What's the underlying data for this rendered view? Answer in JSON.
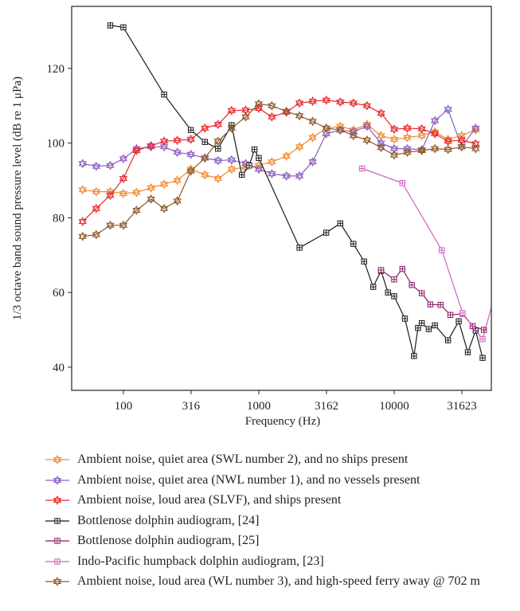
{
  "chart_data": {
    "type": "line",
    "xlabel": "Frequency (Hz)",
    "ylabel": "1/3 octave band sound pressure level (dB re 1 μPa)",
    "xscale": "log",
    "xlim": [
      41.5,
      52200
    ],
    "ylim": [
      33.8,
      136.6
    ],
    "xticks": [
      100,
      316,
      1000,
      3162,
      10000,
      31623
    ],
    "yticks": [
      40,
      60,
      80,
      100,
      120
    ],
    "series": [
      {
        "name": "Ambient noise, quiet area (SWL number 2), and no ships present",
        "color": "#f08c30",
        "marker": "star",
        "x": [
          50,
          63,
          80,
          100,
          125,
          160,
          200,
          250,
          315,
          400,
          500,
          630,
          800,
          1000,
          1250,
          1600,
          2000,
          2500,
          3150,
          4000,
          5000,
          6300,
          8000,
          10000,
          12500,
          16000,
          20000,
          25000,
          31500,
          40000
        ],
        "values": [
          87.5,
          87,
          87,
          86.5,
          86.8,
          88,
          89,
          90,
          93,
          91.5,
          90.5,
          93,
          93.5,
          94,
          95,
          96.5,
          99,
          101.5,
          104,
          104.5,
          103.5,
          105,
          102,
          101,
          101.5,
          102,
          103,
          101,
          102,
          103.5
        ]
      },
      {
        "name": "Ambient noise, quiet area (NWL number 1), and no vessels present",
        "color": "#8c5cc0",
        "marker": "star",
        "x": [
          50,
          63,
          80,
          100,
          125,
          160,
          200,
          250,
          315,
          400,
          500,
          630,
          800,
          1000,
          1250,
          1600,
          2000,
          2500,
          3150,
          4000,
          5000,
          6300,
          8000,
          10000,
          12500,
          16000,
          20000,
          25000,
          31500,
          40000
        ],
        "values": [
          94.5,
          93.8,
          94,
          95.8,
          98.5,
          99,
          99,
          97.5,
          97,
          96,
          95.3,
          95.5,
          94.5,
          93,
          91.8,
          91.2,
          91.2,
          95,
          102.5,
          103.5,
          103,
          104.5,
          100,
          98.5,
          98.5,
          98.2,
          106,
          109,
          99,
          104
        ]
      },
      {
        "name": "Ambient noise, loud area (SLVF), and ships present",
        "color": "#e8282c",
        "marker": "star",
        "x": [
          50,
          63,
          80,
          100,
          125,
          160,
          200,
          250,
          315,
          400,
          500,
          630,
          800,
          1000,
          1250,
          1600,
          2000,
          2500,
          3150,
          4000,
          5000,
          6300,
          8000,
          10000,
          12500,
          16000,
          20000,
          25000,
          31500,
          40000
        ],
        "values": [
          79,
          82.5,
          86,
          90.5,
          98,
          99.3,
          100.5,
          100.7,
          101,
          104,
          105,
          108.7,
          108.8,
          109.3,
          107,
          108.3,
          110.7,
          111.2,
          111.5,
          111,
          110.7,
          110,
          108,
          103.7,
          104,
          103.8,
          102.5,
          100.5,
          100.8,
          99.8
        ]
      },
      {
        "name": "Bottlenose dolphin audiogram, [24]",
        "color": "#1a1a1a",
        "marker": "square",
        "x": [
          80,
          100,
          200,
          315,
          400,
          500,
          630,
          750,
          850,
          930,
          1000,
          2000,
          3150,
          4000,
          5000,
          6000,
          7000,
          8000,
          9000,
          10000,
          12000,
          14000,
          15000,
          16000,
          18000,
          20000,
          25000,
          30000,
          35000,
          40000,
          45000
        ],
        "values": [
          131.5,
          131,
          113,
          103.5,
          100.3,
          98.5,
          104.8,
          91.5,
          94,
          98.3,
          96,
          72,
          76,
          78.5,
          73,
          68.3,
          61.5,
          65.8,
          60,
          59,
          53,
          43,
          50.5,
          51.8,
          50.2,
          51.2,
          47.2,
          52.3,
          44,
          49.8,
          42.5
        ]
      },
      {
        "name": "Bottlenose dolphin audiogram, [25]",
        "color": "#8a1a6a",
        "marker": "square",
        "x": [
          8000,
          10000,
          11500,
          13500,
          16000,
          18500,
          22000,
          26000,
          32000,
          38000,
          46000
        ],
        "values": [
          66,
          63.5,
          66.3,
          62,
          59.8,
          56.8,
          56.7,
          54,
          54.3,
          51,
          50
        ]
      },
      {
        "name": "Indo-Pacific humpback dolphin audiogram, [23]",
        "color": "#d060c0",
        "marker": "square",
        "x": [
          5800,
          11500,
          22500,
          32000,
          45000,
          60000
        ],
        "values": [
          93.2,
          89.3,
          71.3,
          54.5,
          47.5,
          64
        ]
      },
      {
        "name": "Ambient noise, loud area (WL number 3), and high-speed ferry away @ 702 m",
        "color": "#8b5a2b",
        "marker": "star",
        "x": [
          50,
          63,
          80,
          100,
          125,
          160,
          200,
          250,
          315,
          400,
          500,
          630,
          800,
          1000,
          1250,
          1600,
          2000,
          2500,
          3150,
          4000,
          5000,
          6300,
          8000,
          10000,
          12500,
          16000,
          20000,
          25000,
          31500,
          40000
        ],
        "values": [
          75,
          75.5,
          78,
          78,
          82,
          85,
          82.5,
          84.5,
          92.5,
          96,
          100.5,
          104,
          107,
          110.5,
          110,
          108.5,
          107.3,
          105.8,
          104,
          103.5,
          102,
          100.8,
          98.8,
          96.8,
          97.5,
          98,
          98.5,
          98.3,
          99,
          98.5
        ]
      }
    ]
  }
}
